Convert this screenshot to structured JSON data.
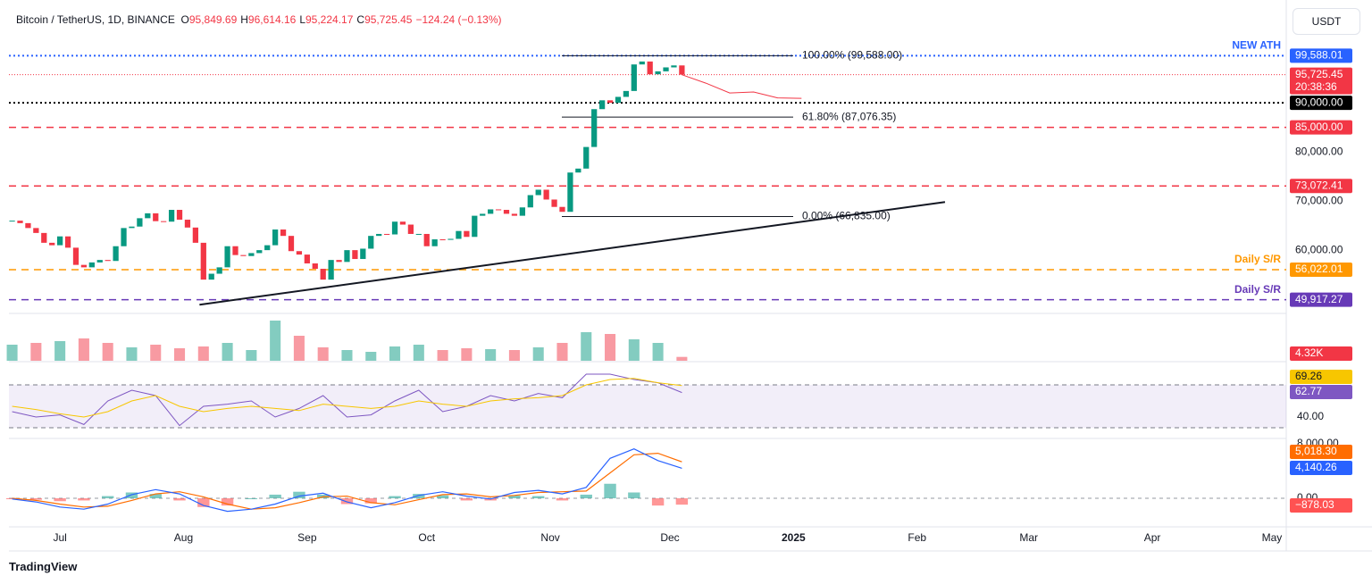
{
  "header": {
    "symbol": "Bitcoin / TetherUS, 1D, BINANCE",
    "ohlc": [
      {
        "key": "O",
        "text": "95,849.69"
      },
      {
        "key": "H",
        "text": "96,614.16"
      },
      {
        "key": "L",
        "text": "95,224.17"
      },
      {
        "key": "C",
        "text": "95,725.45"
      }
    ],
    "change": "−124.24 (−0.13%)",
    "currency": "USDT"
  },
  "footer": "TradingView",
  "chart_data": [
    {
      "type": "candlestick",
      "up_color": "#089981",
      "down_color": "#f23645",
      "x": [
        -12,
        -10,
        -8,
        -6,
        -4,
        -2,
        0,
        2,
        4,
        6,
        8,
        10,
        12,
        14,
        16,
        18,
        20,
        22,
        24,
        26,
        28,
        30,
        32,
        34,
        36,
        38,
        40,
        42,
        44,
        46,
        48,
        50,
        52,
        54,
        56,
        58,
        60,
        62,
        64,
        66,
        68,
        70,
        72,
        74,
        76,
        78,
        80,
        82,
        84,
        86,
        88,
        90,
        92,
        94,
        96,
        98,
        100,
        102,
        104,
        106,
        108,
        110,
        112,
        114,
        116,
        118,
        120,
        122,
        124,
        126,
        128,
        130,
        132,
        134,
        136,
        138,
        140,
        142,
        144,
        146,
        148,
        150,
        152,
        154,
        156
      ],
      "closes": [
        66000,
        65500,
        64500,
        63500,
        61500,
        61000,
        62800,
        60500,
        57000,
        56500,
        57500,
        58000,
        57800,
        60800,
        64500,
        64800,
        66500,
        67500,
        65900,
        65800,
        68200,
        66200,
        64600,
        61500,
        54000,
        55200,
        56500,
        60800,
        59000,
        58800,
        59400,
        60000,
        61000,
        64200,
        62900,
        59800,
        59100,
        57300,
        56200,
        54000,
        58000,
        57600,
        60000,
        58200,
        60300,
        62900,
        63300,
        63200,
        65800,
        65200,
        63300,
        63300,
        60800,
        62200,
        62100,
        62300,
        63900,
        62700,
        67000,
        67400,
        68300,
        68200,
        67400,
        67000,
        68700,
        71200,
        72300,
        70300,
        68800,
        67800,
        75800,
        76600,
        81000,
        88700,
        90500,
        90000,
        91200,
        92400,
        97800,
        98400,
        95800,
        96400,
        97200,
        97600,
        95725.45
      ],
      "xlim": [
        -12.8,
        307.6
      ],
      "ylim": [
        47300,
        109100
      ],
      "xticks": [
        {
          "value": 0,
          "label": "Jul"
        },
        {
          "value": 31,
          "label": "Aug"
        },
        {
          "value": 62,
          "label": "Sep"
        },
        {
          "value": 92,
          "label": "Oct"
        },
        {
          "value": 123,
          "label": "Nov"
        },
        {
          "value": 153,
          "label": "Dec"
        },
        {
          "value": 184,
          "label": "2025"
        },
        {
          "value": 215,
          "label": "Feb"
        },
        {
          "value": 243,
          "label": "Mar"
        },
        {
          "value": 274,
          "label": "Apr"
        },
        {
          "value": 304,
          "label": "May"
        }
      ],
      "yticks": [
        {
          "value": 60000,
          "label": "60,000.00"
        },
        {
          "value": 70000,
          "label": "70,000.00"
        },
        {
          "value": 80000,
          "label": "80,000.00"
        }
      ],
      "levels": [
        {
          "value": 99588.01,
          "label": "99,588.01",
          "color": "#2962ff",
          "style": "dotted",
          "note": "NEW ATH"
        },
        {
          "value": 90000,
          "label": "90,000.00",
          "color": "#000000",
          "style": "dotted"
        },
        {
          "value": 85000,
          "label": "85,000.00",
          "color": "#f23645",
          "style": "dashed"
        },
        {
          "value": 73072.41,
          "label": "73,072.41",
          "color": "#f23645",
          "style": "dashed"
        },
        {
          "value": 56022.01,
          "label": "56,022.01",
          "color": "#ff9800",
          "style": "dashed",
          "note": "Daily S/R"
        },
        {
          "value": 49917.27,
          "label": "49,917.27",
          "color": "#673ab7",
          "style": "dashed",
          "note": "Daily S/R"
        }
      ],
      "last_price": {
        "value": 95725.45,
        "label": "95,725.45",
        "countdown": "20:38:36",
        "color": "#f23645"
      },
      "fib": [
        {
          "value": 99588,
          "label": "100.00% (99,588.00)"
        },
        {
          "value": 87076.35,
          "label": "61.80% (87,076.35)"
        },
        {
          "value": 66835,
          "label": "0.00% (66,835.00)"
        }
      ],
      "trendline": {
        "x": [
          35,
          222
        ],
        "y": [
          48900,
          69800
        ]
      },
      "projection": {
        "x": [
          156,
          162,
          168,
          174,
          180,
          186
        ],
        "values": [
          95700,
          94000,
          92000,
          92200,
          91000,
          90900
        ],
        "color": "#f23645"
      }
    },
    {
      "type": "bar",
      "name": "volume",
      "x": [
        -12,
        -6,
        0,
        6,
        12,
        18,
        24,
        30,
        36,
        42,
        48,
        54,
        60,
        66,
        72,
        78,
        84,
        90,
        96,
        102,
        108,
        114,
        120,
        126,
        132,
        138,
        144,
        150,
        156
      ],
      "values": [
        18,
        20,
        22,
        25,
        20,
        15,
        18,
        14,
        16,
        20,
        12,
        45,
        28,
        15,
        12,
        10,
        16,
        18,
        12,
        14,
        13,
        12,
        15,
        20,
        32,
        30,
        24,
        20,
        4.32
      ],
      "value_labels": {
        "28": "4.32K"
      },
      "ylim": [
        0,
        50
      ],
      "color": "#f23645"
    },
    {
      "type": "line",
      "name": "rsi",
      "x": [
        -12,
        -6,
        0,
        6,
        12,
        18,
        24,
        30,
        36,
        42,
        48,
        54,
        60,
        66,
        72,
        78,
        84,
        90,
        96,
        102,
        108,
        114,
        120,
        126,
        132,
        138,
        144,
        150,
        156
      ],
      "series": [
        {
          "color": "#7e57c2",
          "values": [
            45,
            40,
            42,
            33,
            55,
            65,
            60,
            32,
            50,
            52,
            55,
            40,
            48,
            60,
            40,
            42,
            55,
            65,
            45,
            50,
            60,
            55,
            62,
            58,
            80,
            80,
            75,
            72,
            62.77
          ]
        },
        {
          "color": "#f7c600",
          "values": [
            50,
            47,
            43,
            40,
            45,
            55,
            60,
            50,
            45,
            48,
            50,
            48,
            46,
            52,
            50,
            48,
            50,
            55,
            52,
            50,
            55,
            57,
            58,
            60,
            70,
            75,
            76,
            72,
            69.26
          ]
        }
      ],
      "bands": [
        70,
        30
      ],
      "ylim": [
        20.8,
        90.8
      ],
      "yticks": [
        {
          "value": 40,
          "label": "40.00"
        }
      ]
    },
    {
      "type": "macd",
      "name": "macd",
      "x": [
        -12,
        -6,
        0,
        6,
        12,
        18,
        24,
        30,
        36,
        42,
        48,
        54,
        60,
        66,
        72,
        78,
        84,
        90,
        96,
        102,
        108,
        114,
        120,
        126,
        132,
        138,
        144,
        150,
        156
      ],
      "series": [
        {
          "color": "#ff6d00",
          "values": [
            0,
            -300,
            -800,
            -1200,
            -1100,
            -300,
            600,
            900,
            200,
            -800,
            -1500,
            -1300,
            -600,
            200,
            300,
            -600,
            -900,
            -200,
            500,
            600,
            200,
            400,
            800,
            900,
            1000,
            3500,
            6000,
            6200,
            5018.3
          ],
          "value_labels": {
            "28": "5,018.30"
          }
        },
        {
          "color": "#2962ff",
          "values": [
            -100,
            -500,
            -1200,
            -1500,
            -800,
            500,
            1200,
            600,
            -1000,
            -1800,
            -1500,
            -800,
            300,
            700,
            -500,
            -1300,
            -600,
            400,
            900,
            300,
            -100,
            800,
            1100,
            600,
            1500,
            5500,
            6800,
            5200,
            4140.26
          ],
          "value_labels": {
            "28": "4,140.26"
          }
        }
      ],
      "histogram": {
        "values": [
          -100,
          -200,
          -400,
          -300,
          300,
          800,
          600,
          -300,
          -1200,
          -1000,
          0,
          500,
          900,
          500,
          -800,
          -700,
          300,
          600,
          400,
          -300,
          -300,
          400,
          300,
          -300,
          500,
          2000,
          800,
          -1000,
          -878.03
        ],
        "value_labels": {
          "28": "−878.03"
        },
        "up_color": "#26a69a",
        "down_color": "#ff5252"
      },
      "ylim": [
        -3938,
        8123
      ],
      "yticks": [
        {
          "value": 0,
          "label": "0.00"
        },
        {
          "value": 8000,
          "label": "8,000.00"
        }
      ]
    }
  ]
}
